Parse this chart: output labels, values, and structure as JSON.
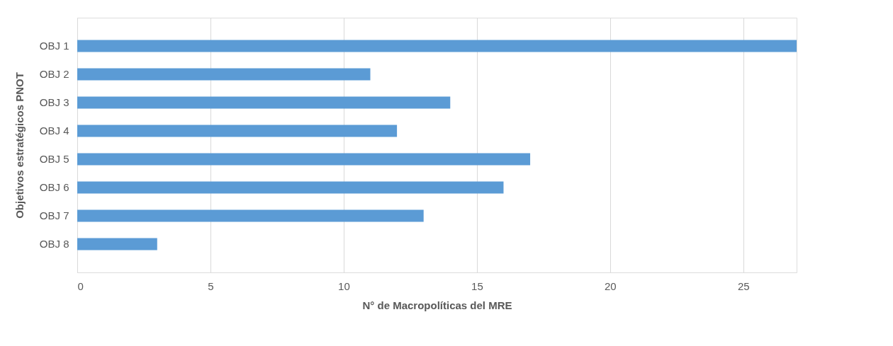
{
  "chart_data": {
    "type": "bar",
    "orientation": "horizontal",
    "xlabel": "N° de Macropolíticas del MRE",
    "ylabel": "Objetivos estratégicos PNOT",
    "categories": [
      "OBJ 1",
      "OBJ 2",
      "OBJ 3",
      "OBJ 4",
      "OBJ 5",
      "OBJ 6",
      "OBJ 7",
      "OBJ 8"
    ],
    "values": [
      27,
      11,
      14,
      12,
      17,
      16,
      13,
      3
    ],
    "color": "#5b9bd5",
    "xlim": [
      0,
      27
    ],
    "xticks": [
      0,
      5,
      10,
      15,
      20,
      25
    ],
    "grid": "x"
  }
}
